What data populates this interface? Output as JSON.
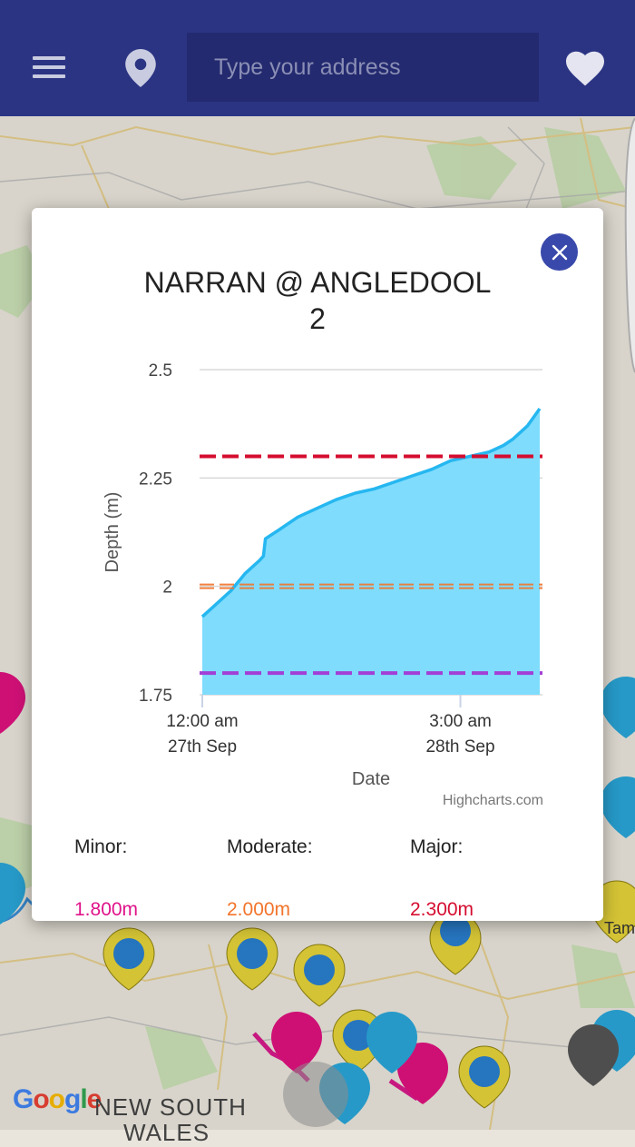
{
  "app_bar": {
    "search_placeholder": "Type your address",
    "background": "#2b3483",
    "icons": [
      "menu-icon",
      "location-pin-icon",
      "heart-icon"
    ]
  },
  "map": {
    "attribution": "Google",
    "region_line1": "NEW SOUTH",
    "region_line2": "WALES",
    "town_fragment": "Tam"
  },
  "modal": {
    "title": "NARRAN @ ANGLEDOOL 2",
    "title_line1": "NARRAN @ ANGLEDOOL",
    "title_line2": "2",
    "credit": "Highcharts.com",
    "levels": [
      {
        "label": "Minor:",
        "value": "1.800m",
        "color": "#e0128a"
      },
      {
        "label": "Moderate:",
        "value": "2.000m",
        "color": "#f2742b"
      },
      {
        "label": "Major:",
        "value": "2.300m",
        "color": "#d50d2f"
      }
    ]
  },
  "chart_data": {
    "type": "area",
    "title": "NARRAN @ ANGLEDOOL 2",
    "xlabel": "Date",
    "ylabel": "Depth (m)",
    "ylim": [
      1.75,
      2.5
    ],
    "yticks": [
      "1.75",
      "2",
      "2.25",
      "2.5"
    ],
    "xticks": [
      {
        "line1": "12:00 am",
        "line2": "27th Sep",
        "hours": 0
      },
      {
        "line1": "3:00 am",
        "line2": "28th Sep",
        "hours": 27
      }
    ],
    "x_hours_range": [
      0,
      35.3
    ],
    "series": [
      {
        "x": [
          0,
          1.5,
          3,
          4.5,
          6,
          6.4,
          6.6,
          8,
          10,
          12,
          14,
          16,
          18,
          20,
          22,
          24,
          26,
          28,
          30,
          31.5,
          32.5,
          34,
          35.3
        ],
        "y": [
          1.93,
          1.96,
          1.99,
          2.03,
          2.06,
          2.07,
          2.11,
          2.13,
          2.16,
          2.18,
          2.2,
          2.215,
          2.225,
          2.24,
          2.255,
          2.27,
          2.29,
          2.3,
          2.31,
          2.325,
          2.34,
          2.37,
          2.41
        ],
        "color": "#26b7f0",
        "fill": "#7fdcfd"
      }
    ],
    "thresholds": [
      {
        "name": "Major",
        "value": 2.3,
        "color": "#d50d2f"
      },
      {
        "name": "Moderate",
        "value": 2.0,
        "color": "#f2742b"
      },
      {
        "name": "Minor",
        "value": 1.8,
        "color": "#e0128a"
      }
    ],
    "grid": true
  }
}
